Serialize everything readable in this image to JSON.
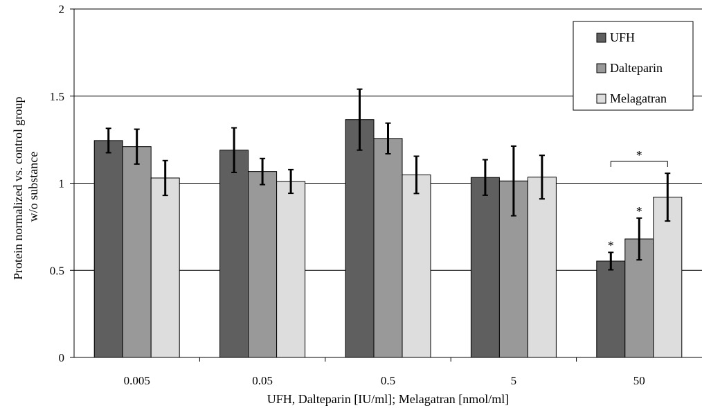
{
  "chart_data": {
    "type": "bar",
    "title": "",
    "xlabel": "UFH, Dalteparin [IU/ml]; Melagatran [nmol/ml]",
    "ylabel_lines": [
      "Protein normalized vs. control group",
      "w/o substance"
    ],
    "categories": [
      "0.005",
      "0.05",
      "0.5",
      "5",
      "50"
    ],
    "ylim": [
      0,
      2
    ],
    "yticks": [
      "0",
      "0.5",
      "1",
      "1.5",
      "2"
    ],
    "ytick_values": [
      0,
      0.5,
      1,
      1.5,
      2
    ],
    "grid": "horizontal",
    "legend_position": "top-right",
    "series": [
      {
        "name": "UFH",
        "color": "#5f5f5f",
        "values": [
          1.245,
          1.19,
          1.365,
          1.033,
          0.553
        ],
        "errors": [
          0.07,
          0.128,
          0.175,
          0.102,
          0.05
        ]
      },
      {
        "name": "Dalteparin",
        "color": "#999999",
        "values": [
          1.21,
          1.067,
          1.257,
          1.013,
          0.68
        ],
        "errors": [
          0.1,
          0.075,
          0.088,
          0.2,
          0.12
        ]
      },
      {
        "name": "Melagatran",
        "color": "#dddddd",
        "values": [
          1.03,
          1.01,
          1.048,
          1.035,
          0.92
        ],
        "errors": [
          0.1,
          0.068,
          0.107,
          0.125,
          0.137
        ]
      }
    ],
    "significance": {
      "bar_stars": [
        {
          "category": "50",
          "series": "UFH",
          "label": "*"
        },
        {
          "category": "50",
          "series": "Dalteparin",
          "label": "*"
        }
      ],
      "bracket": {
        "category": "50",
        "from": "UFH",
        "to": "Melagatran",
        "label": "*"
      }
    }
  }
}
